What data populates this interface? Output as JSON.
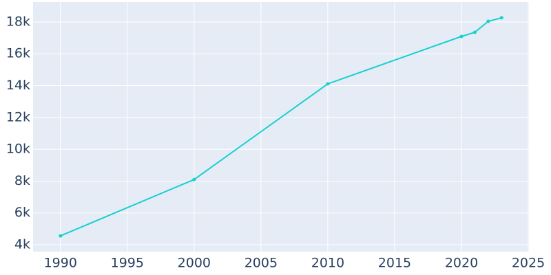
{
  "chart_data": {
    "type": "line",
    "x": [
      1990,
      2000,
      2010,
      2020,
      2021,
      2022,
      2023
    ],
    "series": [
      {
        "color": "#17cfcf",
        "values": [
          4560,
          8100,
          14110,
          17090,
          17350,
          18040,
          18260
        ]
      }
    ],
    "xlim": [
      1987.95,
      2025.05
    ],
    "xticks": [
      1990,
      1995,
      2000,
      2005,
      2010,
      2015,
      2020,
      2025
    ],
    "ylim": [
      3570,
      19250
    ],
    "yticks": [
      {
        "value": 4000,
        "label": "4k"
      },
      {
        "value": 6000,
        "label": "6k"
      },
      {
        "value": 8000,
        "label": "8k"
      },
      {
        "value": 10000,
        "label": "10k"
      },
      {
        "value": 12000,
        "label": "12k"
      },
      {
        "value": 14000,
        "label": "14k"
      },
      {
        "value": 16000,
        "label": "16k"
      },
      {
        "value": 18000,
        "label": "18k"
      }
    ],
    "grid": true
  }
}
